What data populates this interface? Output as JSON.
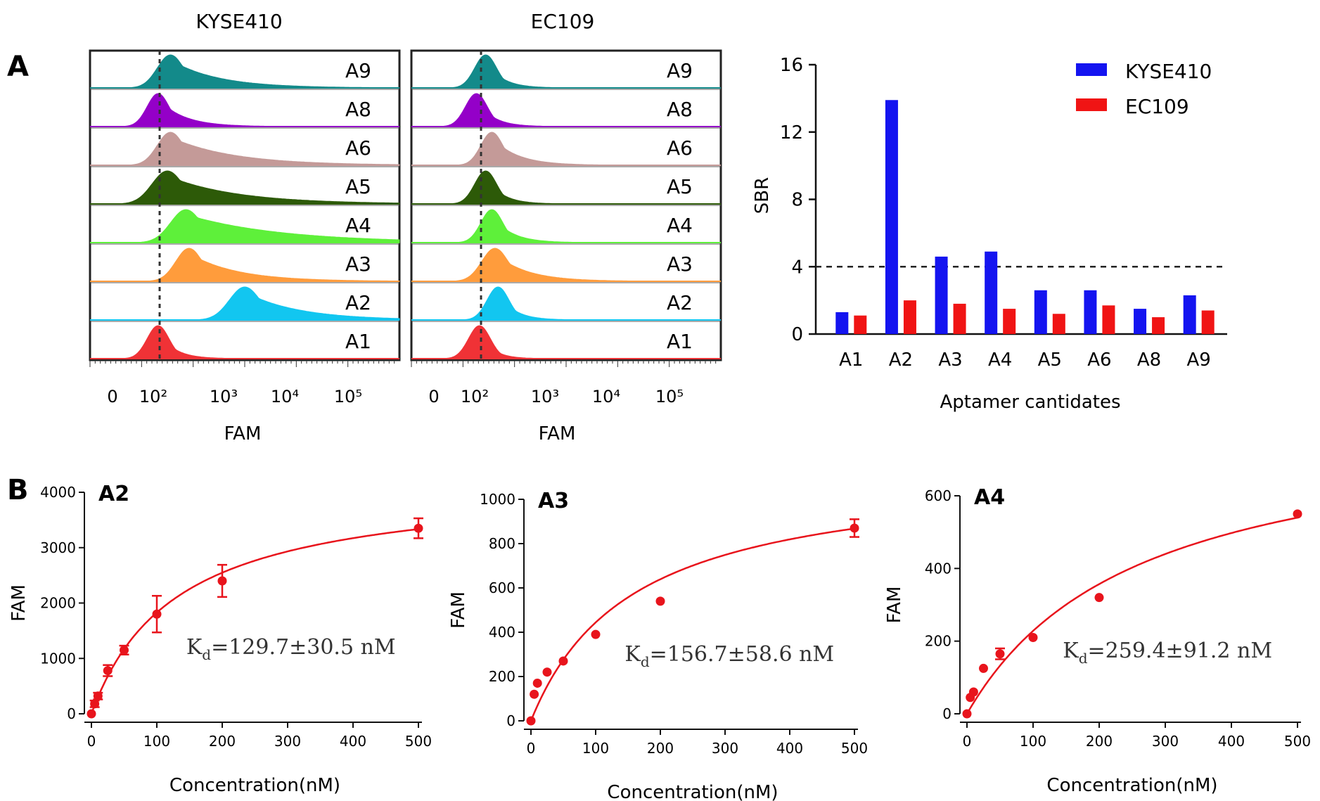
{
  "panel_a": {
    "letter": "A",
    "flow": {
      "panels": [
        {
          "title": "KYSE410",
          "xlabel": "FAM"
        },
        {
          "title": "EC109",
          "xlabel": "FAM"
        }
      ],
      "x_tick_labels": [
        "0",
        "10²",
        "10³",
        "10⁴",
        "10⁵"
      ],
      "rows": [
        {
          "label": "A9",
          "color": "#138a8a",
          "kyse_peak": 0.26,
          "kyse_width": 0.06,
          "kyse_tail": 0.15,
          "ec_peak": 0.24,
          "ec_width": 0.05,
          "ec_tail": 0.05
        },
        {
          "label": "A8",
          "color": "#9400c8",
          "kyse_peak": 0.22,
          "kyse_width": 0.05,
          "kyse_tail": 0.08,
          "ec_peak": 0.21,
          "ec_width": 0.05,
          "ec_tail": 0.05
        },
        {
          "label": "A6",
          "color": "#c49a98",
          "kyse_peak": 0.26,
          "kyse_width": 0.06,
          "kyse_tail": 0.2,
          "ec_peak": 0.26,
          "ec_width": 0.05,
          "ec_tail": 0.08
        },
        {
          "label": "A5",
          "color": "#2d5a08",
          "kyse_peak": 0.25,
          "kyse_width": 0.07,
          "kyse_tail": 0.22,
          "ec_peak": 0.24,
          "ec_width": 0.05,
          "ec_tail": 0.05
        },
        {
          "label": "A4",
          "color": "#5ef03a",
          "kyse_peak": 0.31,
          "kyse_width": 0.07,
          "kyse_tail": 0.3,
          "ec_peak": 0.26,
          "ec_width": 0.05,
          "ec_tail": 0.06
        },
        {
          "label": "A3",
          "color": "#ff9c3c",
          "kyse_peak": 0.32,
          "kyse_width": 0.06,
          "kyse_tail": 0.15,
          "ec_peak": 0.27,
          "ec_width": 0.06,
          "ec_tail": 0.1
        },
        {
          "label": "A2",
          "color": "#12c6f0",
          "kyse_peak": 0.5,
          "kyse_width": 0.07,
          "kyse_tail": 0.17,
          "ec_peak": 0.28,
          "ec_width": 0.05,
          "ec_tail": 0.05
        },
        {
          "label": "A1",
          "color": "#f03236",
          "kyse_peak": 0.22,
          "kyse_width": 0.05,
          "kyse_tail": 0.05,
          "ec_peak": 0.22,
          "ec_width": 0.05,
          "ec_tail": 0.04
        }
      ]
    },
    "bar": {
      "chart_data": {
        "type": "bar",
        "categories": [
          "A1",
          "A2",
          "A3",
          "A4",
          "A5",
          "A6",
          "A8",
          "A9"
        ],
        "series": [
          {
            "name": "KYSE410",
            "color": "#1414f0",
            "values": [
              1.3,
              13.9,
              4.6,
              4.9,
              2.6,
              2.6,
              1.5,
              2.3
            ]
          },
          {
            "name": "EC109",
            "color": "#f01414",
            "values": [
              1.1,
              2.0,
              1.8,
              1.5,
              1.2,
              1.7,
              1.0,
              1.4
            ]
          }
        ],
        "xlabel": "Aptamer cantidates",
        "ylabel": "SBR",
        "ylim": [
          0,
          16
        ],
        "yticks": [
          "0",
          "4",
          "8",
          "12",
          "16"
        ],
        "threshold": 4,
        "legend_position": "top-right"
      }
    }
  },
  "panel_b": {
    "letter": "B",
    "chart_data": [
      {
        "type": "scatter",
        "title": "A2",
        "xlabel": "Concentration(nM)",
        "ylabel": "FAM",
        "xlim": [
          0,
          500
        ],
        "ylim": [
          0,
          4000
        ],
        "xticks": [
          "0",
          "100",
          "200",
          "300",
          "400",
          "500"
        ],
        "yticks": [
          "0",
          "1000",
          "2000",
          "3000",
          "4000"
        ],
        "kd_prefix": "K",
        "kd_sub": "d",
        "kd_value": "=129.7±30.5 nM",
        "x": [
          0,
          5,
          10,
          25,
          50,
          100,
          200,
          500
        ],
        "y": [
          0,
          180,
          320,
          780,
          1150,
          1800,
          2400,
          3350
        ],
        "err": [
          0,
          60,
          60,
          100,
          80,
          330,
          290,
          180
        ],
        "fit_bmax": 4200,
        "fit_kd": 129.7,
        "color": "#e8141c"
      },
      {
        "type": "scatter",
        "title": "A3",
        "xlabel": "Concentration(nM)",
        "ylabel": "FAM",
        "xlim": [
          0,
          500
        ],
        "ylim": [
          0,
          1000
        ],
        "xticks": [
          "0",
          "100",
          "200",
          "300",
          "400",
          "500"
        ],
        "yticks": [
          "0",
          "200",
          "400",
          "600",
          "800",
          "1000"
        ],
        "kd_prefix": "K",
        "kd_sub": "d",
        "kd_value": "=156.7±58.6 nM",
        "x": [
          0,
          5,
          10,
          25,
          50,
          100,
          200,
          500
        ],
        "y": [
          0,
          120,
          170,
          220,
          270,
          390,
          540,
          870
        ],
        "err": [
          0,
          0,
          0,
          0,
          0,
          0,
          0,
          40
        ],
        "fit_bmax": 1140,
        "fit_kd": 156.7,
        "color": "#e8141c"
      },
      {
        "type": "scatter",
        "title": "A4",
        "xlabel": "Concentration(nM)",
        "ylabel": "FAM",
        "xlim": [
          0,
          500
        ],
        "ylim": [
          0,
          600
        ],
        "xticks": [
          "0",
          "100",
          "200",
          "300",
          "400",
          "500"
        ],
        "yticks": [
          "0",
          "200",
          "400",
          "600"
        ],
        "kd_prefix": "K",
        "kd_sub": "d",
        "kd_value": "=259.4±91.2 nM",
        "x": [
          0,
          5,
          10,
          25,
          50,
          100,
          200,
          500
        ],
        "y": [
          0,
          45,
          60,
          125,
          165,
          210,
          320,
          550
        ],
        "err": [
          0,
          0,
          0,
          0,
          15,
          0,
          0,
          0
        ],
        "fit_bmax": 820,
        "fit_kd": 259.4,
        "color": "#e8141c"
      }
    ]
  }
}
